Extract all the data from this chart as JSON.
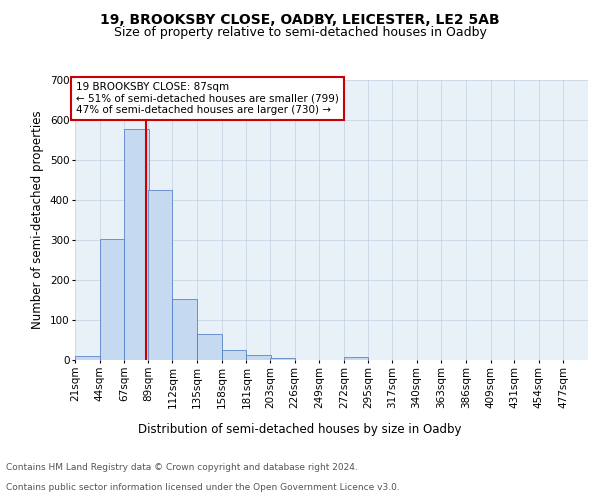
{
  "title": "19, BROOKSBY CLOSE, OADBY, LEICESTER, LE2 5AB",
  "subtitle": "Size of property relative to semi-detached houses in Oadby",
  "xlabel": "Distribution of semi-detached houses by size in Oadby",
  "ylabel": "Number of semi-detached properties",
  "footer_line1": "Contains HM Land Registry data © Crown copyright and database right 2024.",
  "footer_line2": "Contains public sector information licensed under the Open Government Licence v3.0.",
  "bin_labels": [
    "21sqm",
    "44sqm",
    "67sqm",
    "89sqm",
    "112sqm",
    "135sqm",
    "158sqm",
    "181sqm",
    "203sqm",
    "226sqm",
    "249sqm",
    "272sqm",
    "295sqm",
    "317sqm",
    "340sqm",
    "363sqm",
    "386sqm",
    "409sqm",
    "431sqm",
    "454sqm",
    "477sqm"
  ],
  "bin_values": [
    10,
    303,
    577,
    426,
    152,
    65,
    26,
    13,
    6,
    0,
    0,
    7,
    0,
    0,
    0,
    0,
    0,
    0,
    0,
    0,
    0
  ],
  "bin_edges": [
    21,
    44,
    67,
    89,
    112,
    135,
    158,
    181,
    203,
    226,
    249,
    272,
    295,
    317,
    340,
    363,
    386,
    409,
    431,
    454,
    477
  ],
  "bar_color": "#c5d9f1",
  "bar_edge_color": "#4472c4",
  "property_size": 87,
  "property_label": "19 BROOKSBY CLOSE: 87sqm",
  "pct_smaller": 51,
  "count_smaller": 799,
  "pct_larger": 47,
  "count_larger": 730,
  "vline_color": "#cc0000",
  "annotation_box_edge": "#cc0000",
  "ylim": [
    0,
    700
  ],
  "yticks": [
    0,
    100,
    200,
    300,
    400,
    500,
    600,
    700
  ],
  "background_color": "#ffffff",
  "grid_color": "#c0cfe0",
  "title_fontsize": 10,
  "subtitle_fontsize": 9,
  "label_fontsize": 8.5,
  "tick_fontsize": 7.5,
  "footer_fontsize": 6.5,
  "annotation_fontsize": 7.5
}
